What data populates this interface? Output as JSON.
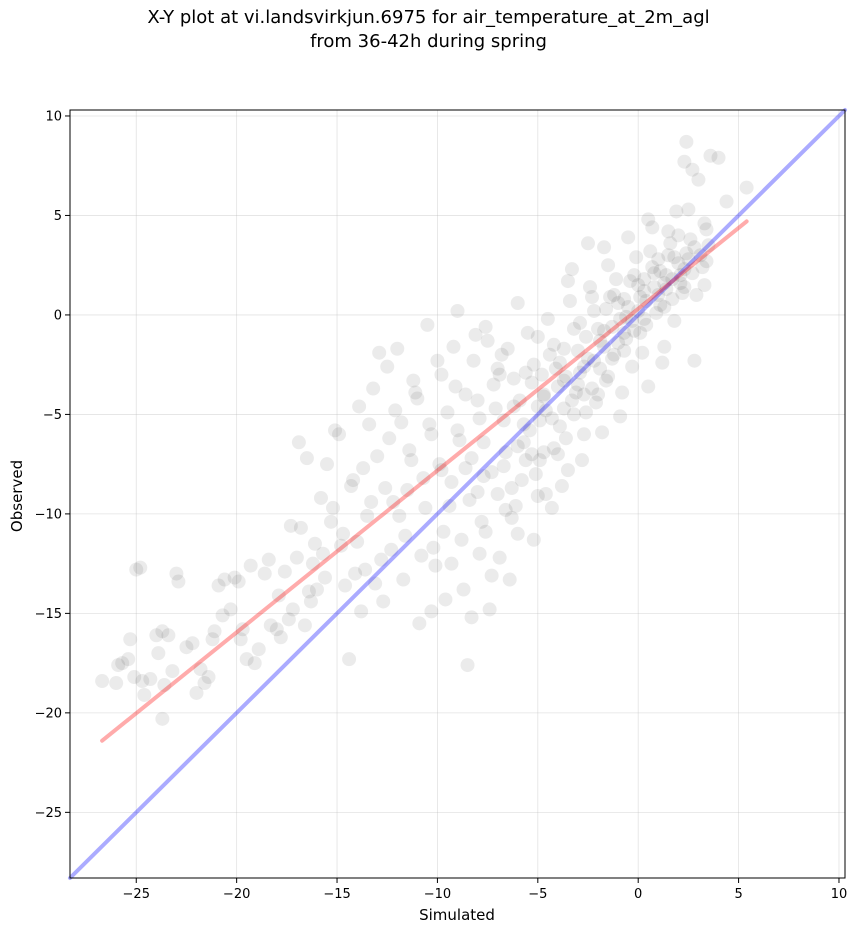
{
  "chart_data": {
    "type": "scatter",
    "title": "X-Y plot at vi.landsvirkjun.6975 for air_temperature_at_2m_agl",
    "subtitle": "from 36-42h during spring",
    "xlabel": "Simulated",
    "ylabel": "Observed",
    "xlim": [
      -28.3,
      10.3
    ],
    "ylim": [
      -28.3,
      10.3
    ],
    "xticks": [
      -25,
      -20,
      -15,
      -10,
      -5,
      0,
      5,
      10
    ],
    "yticks": [
      -25,
      -20,
      -15,
      -10,
      -5,
      0,
      5,
      10
    ],
    "xtick_labels": [
      "−25",
      "−20",
      "−15",
      "−10",
      "−5",
      "0",
      "5",
      "10"
    ],
    "ytick_labels": [
      "−25",
      "−20",
      "−15",
      "−10",
      "−5",
      "0",
      "5",
      "10"
    ],
    "grid": true,
    "point_color": "#000000",
    "point_alpha": 0.08,
    "regression_line": {
      "color": "#ff0000",
      "x": [
        -26.7,
        5.4
      ],
      "y": [
        -21.4,
        4.7
      ]
    },
    "identity_line": {
      "color": "#0000ff",
      "x": [
        -28.3,
        10.3
      ],
      "y": [
        -28.3,
        10.3
      ]
    },
    "points": [
      [
        -26.7,
        -18.4
      ],
      [
        -26.0,
        -18.5
      ],
      [
        -25.7,
        -17.5
      ],
      [
        -25.3,
        -16.3
      ],
      [
        -25.4,
        -17.3
      ],
      [
        -25.0,
        -12.8
      ],
      [
        -24.8,
        -12.7
      ],
      [
        -25.1,
        -18.2
      ],
      [
        -24.7,
        -18.4
      ],
      [
        -24.3,
        -18.3
      ],
      [
        -24.0,
        -16.1
      ],
      [
        -23.7,
        -15.9
      ],
      [
        -23.4,
        -16.1
      ],
      [
        -23.9,
        -17.0
      ],
      [
        -23.6,
        -18.6
      ],
      [
        -23.7,
        -20.3
      ],
      [
        -23.0,
        -13.0
      ],
      [
        -22.9,
        -13.4
      ],
      [
        -22.5,
        -16.7
      ],
      [
        -22.2,
        -16.5
      ],
      [
        -21.8,
        -17.8
      ],
      [
        -21.6,
        -18.5
      ],
      [
        -21.4,
        -18.2
      ],
      [
        -21.1,
        -15.9
      ],
      [
        -20.9,
        -13.6
      ],
      [
        -20.6,
        -13.3
      ],
      [
        -20.1,
        -13.2
      ],
      [
        -19.9,
        -13.4
      ],
      [
        -19.7,
        -15.8
      ],
      [
        -19.8,
        -16.3
      ],
      [
        -19.5,
        -17.3
      ],
      [
        -19.1,
        -17.5
      ],
      [
        -18.6,
        -13.0
      ],
      [
        -18.3,
        -15.6
      ],
      [
        -18.0,
        -15.8
      ],
      [
        -17.8,
        -16.2
      ],
      [
        -17.6,
        -12.9
      ],
      [
        -17.4,
        -15.3
      ],
      [
        -17.2,
        -14.8
      ],
      [
        -17.0,
        -12.2
      ],
      [
        -16.8,
        -10.7
      ],
      [
        -16.9,
        -6.4
      ],
      [
        -16.6,
        -15.6
      ],
      [
        -16.4,
        -13.9
      ],
      [
        -16.5,
        -7.2
      ],
      [
        -16.2,
        -12.5
      ],
      [
        -16.0,
        -13.8
      ],
      [
        -15.8,
        -9.2
      ],
      [
        -15.7,
        -12.0
      ],
      [
        -15.5,
        -7.5
      ],
      [
        -15.3,
        -10.4
      ],
      [
        -15.1,
        -5.8
      ],
      [
        -14.9,
        -6.0
      ],
      [
        -14.8,
        -11.6
      ],
      [
        -14.6,
        -13.6
      ],
      [
        -14.4,
        -17.3
      ],
      [
        -14.2,
        -8.3
      ],
      [
        -14.0,
        -11.4
      ],
      [
        -13.9,
        -4.6
      ],
      [
        -13.7,
        -7.7
      ],
      [
        -13.5,
        -10.1
      ],
      [
        -13.3,
        -9.4
      ],
      [
        -13.2,
        -3.7
      ],
      [
        -13.0,
        -7.1
      ],
      [
        -12.8,
        -12.3
      ],
      [
        -12.6,
        -8.7
      ],
      [
        -12.5,
        -2.6
      ],
      [
        -12.2,
        -9.4
      ],
      [
        -12.0,
        -1.7
      ],
      [
        -11.8,
        -5.4
      ],
      [
        -11.6,
        -11.1
      ],
      [
        -11.4,
        -6.8
      ],
      [
        -11.2,
        -3.3
      ],
      [
        -11.0,
        -4.2
      ],
      [
        -10.9,
        -15.5
      ],
      [
        -10.7,
        -8.2
      ],
      [
        -10.5,
        -0.5
      ],
      [
        -10.3,
        -6.0
      ],
      [
        -10.1,
        -12.6
      ],
      [
        -9.9,
        -7.5
      ],
      [
        -9.8,
        -3.0
      ],
      [
        -9.6,
        -14.3
      ],
      [
        -9.4,
        -9.6
      ],
      [
        -9.2,
        -1.6
      ],
      [
        -9.0,
        -5.8
      ],
      [
        -8.8,
        -11.3
      ],
      [
        -8.6,
        -4.0
      ],
      [
        -8.5,
        -17.6
      ],
      [
        -8.3,
        -7.2
      ],
      [
        -8.1,
        -1.0
      ],
      [
        -7.9,
        -12.0
      ],
      [
        -7.7,
        -6.4
      ],
      [
        -7.6,
        -0.6
      ],
      [
        -7.4,
        -14.8
      ],
      [
        -7.2,
        -3.5
      ],
      [
        -7.0,
        -9.0
      ],
      [
        -6.8,
        -2.0
      ],
      [
        -6.6,
        -6.9
      ],
      [
        -6.4,
        -13.3
      ],
      [
        -6.2,
        -4.6
      ],
      [
        -6.0,
        0.6
      ],
      [
        -5.8,
        -8.3
      ],
      [
        -5.6,
        -2.9
      ],
      [
        -5.4,
        -5.8
      ],
      [
        -5.2,
        -11.3
      ],
      [
        -5.0,
        -1.1
      ],
      [
        -4.9,
        -7.3
      ],
      [
        -4.7,
        -4.1
      ],
      [
        -4.5,
        -0.2
      ],
      [
        -4.3,
        -9.7
      ],
      [
        -4.1,
        -2.7
      ],
      [
        -3.9,
        -5.6
      ],
      [
        -3.7,
        -1.7
      ],
      [
        -3.5,
        -7.8
      ],
      [
        -3.3,
        2.3
      ],
      [
        -3.1,
        -3.9
      ],
      [
        -2.9,
        -0.4
      ],
      [
        -2.7,
        -6.0
      ],
      [
        -2.5,
        -2.2
      ],
      [
        -2.3,
        0.9
      ],
      [
        -2.1,
        -4.4
      ],
      [
        -1.9,
        -1.3
      ],
      [
        -1.7,
        3.4
      ],
      [
        -1.5,
        -3.1
      ],
      [
        -1.3,
        -0.6
      ],
      [
        -1.1,
        1.8
      ],
      [
        -0.9,
        -5.1
      ],
      [
        -0.7,
        -1.8
      ],
      [
        -0.5,
        0.4
      ],
      [
        -0.3,
        -2.6
      ],
      [
        -0.1,
        2.9
      ],
      [
        0.1,
        -0.9
      ],
      [
        0.3,
        1.2
      ],
      [
        0.5,
        -3.6
      ],
      [
        0.7,
        4.4
      ],
      [
        0.9,
        0.1
      ],
      [
        1.1,
        2.2
      ],
      [
        1.3,
        -1.6
      ],
      [
        1.5,
        3.0
      ],
      [
        1.7,
        0.8
      ],
      [
        1.9,
        5.2
      ],
      [
        2.1,
        1.6
      ],
      [
        2.3,
        7.7
      ],
      [
        2.4,
        8.7
      ],
      [
        2.6,
        3.8
      ],
      [
        2.8,
        -2.3
      ],
      [
        3.0,
        6.8
      ],
      [
        3.2,
        2.4
      ],
      [
        3.4,
        4.3
      ],
      [
        3.6,
        8.0
      ],
      [
        4.0,
        7.9
      ],
      [
        4.4,
        5.7
      ],
      [
        5.4,
        6.4
      ],
      [
        3.3,
        1.5
      ],
      [
        2.7,
        7.3
      ],
      [
        -12.4,
        -6.2
      ],
      [
        -11.5,
        -8.8
      ],
      [
        -10.6,
        -9.7
      ],
      [
        -9.5,
        -4.9
      ],
      [
        -8.4,
        -9.3
      ],
      [
        -7.3,
        -7.9
      ],
      [
        -6.3,
        -8.7
      ],
      [
        -5.3,
        -3.4
      ],
      [
        -4.2,
        -6.7
      ],
      [
        -3.2,
        -5.0
      ],
      [
        -2.2,
        -2.3
      ],
      [
        -1.2,
        -2.0
      ],
      [
        -0.2,
        -0.8
      ],
      [
        0.8,
        1.4
      ],
      [
        1.8,
        -0.3
      ],
      [
        -13.6,
        -12.8
      ],
      [
        -12.7,
        -14.4
      ],
      [
        -11.9,
        -10.1
      ],
      [
        -10.8,
        -12.1
      ],
      [
        -9.7,
        -10.9
      ],
      [
        -8.7,
        -13.8
      ],
      [
        -7.8,
        -10.4
      ],
      [
        -6.9,
        -12.2
      ],
      [
        -6.1,
        -9.6
      ],
      [
        -5.1,
        -8.0
      ],
      [
        -4.0,
        -7.0
      ],
      [
        -3.0,
        -3.5
      ],
      [
        -2.0,
        -4.0
      ],
      [
        -1.0,
        -1.4
      ],
      [
        0.0,
        0.2
      ],
      [
        1.0,
        1.0
      ],
      [
        2.0,
        2.6
      ],
      [
        -15.6,
        -13.2
      ],
      [
        -14.7,
        -11.0
      ],
      [
        -13.8,
        -14.9
      ],
      [
        -16.3,
        -14.4
      ],
      [
        -17.9,
        -14.1
      ],
      [
        -18.9,
        -16.8
      ],
      [
        -19.3,
        -12.6
      ],
      [
        -20.7,
        -15.1
      ],
      [
        -22.0,
        -19.0
      ],
      [
        -24.6,
        -19.1
      ],
      [
        -9.1,
        -3.6
      ],
      [
        -8.2,
        -2.3
      ],
      [
        -7.1,
        -4.7
      ],
      [
        -6.5,
        -1.7
      ],
      [
        -5.5,
        -0.9
      ],
      [
        -4.4,
        -2.0
      ],
      [
        -3.4,
        0.7
      ],
      [
        -2.4,
        1.4
      ],
      [
        -1.4,
        0.9
      ],
      [
        -0.4,
        1.7
      ],
      [
        0.6,
        3.2
      ],
      [
        1.6,
        3.6
      ],
      [
        2.5,
        2.8
      ],
      [
        3.5,
        3.5
      ],
      [
        -10.2,
        -11.7
      ],
      [
        -9.3,
        -8.4
      ],
      [
        -8.0,
        -8.9
      ],
      [
        -6.7,
        -5.3
      ],
      [
        -5.7,
        -6.4
      ],
      [
        -4.6,
        -4.8
      ],
      [
        -3.6,
        -3.1
      ],
      [
        -2.6,
        -1.1
      ],
      [
        -1.6,
        0.3
      ],
      [
        -0.6,
        -0.1
      ],
      [
        0.4,
        0.7
      ],
      [
        1.4,
        2.0
      ],
      [
        2.2,
        1.1
      ],
      [
        -11.1,
        -3.9
      ],
      [
        -12.9,
        -1.9
      ],
      [
        -13.4,
        -5.5
      ],
      [
        -14.3,
        -8.6
      ],
      [
        -15.2,
        -9.7
      ],
      [
        -16.1,
        -11.5
      ],
      [
        -17.3,
        -10.6
      ],
      [
        -18.4,
        -12.3
      ],
      [
        -7.5,
        -1.3
      ],
      [
        -6.0,
        -11.0
      ],
      [
        -5.0,
        -9.1
      ],
      [
        -4.8,
        -3.0
      ],
      [
        -3.8,
        -8.6
      ],
      [
        -2.8,
        -7.3
      ],
      [
        -1.8,
        -5.9
      ],
      [
        -0.8,
        -3.9
      ],
      [
        0.2,
        -1.9
      ],
      [
        1.2,
        -2.4
      ],
      [
        2.9,
        1.0
      ],
      [
        -3.5,
        1.7
      ],
      [
        -2.5,
        3.6
      ],
      [
        -1.5,
        2.5
      ],
      [
        -0.5,
        3.9
      ],
      [
        0.5,
        4.8
      ],
      [
        1.5,
        4.2
      ],
      [
        2.5,
        5.3
      ],
      [
        3.3,
        4.6
      ],
      [
        -8.9,
        -6.3
      ],
      [
        -7.9,
        -5.2
      ],
      [
        -6.9,
        -3.0
      ],
      [
        -5.9,
        -4.3
      ],
      [
        -4.9,
        -5.3
      ],
      [
        -3.9,
        -2.4
      ],
      [
        -2.9,
        -2.9
      ],
      [
        -1.9,
        -2.7
      ],
      [
        -0.9,
        -0.2
      ],
      [
        0.1,
        0.9
      ],
      [
        1.1,
        0.5
      ],
      [
        2.1,
        2.0
      ],
      [
        -11.3,
        -7.3
      ],
      [
        -10.4,
        -5.5
      ],
      [
        -9.8,
        -7.8
      ],
      [
        -8.6,
        -7.7
      ],
      [
        -7.6,
        -10.9
      ],
      [
        -6.6,
        -9.8
      ],
      [
        -5.6,
        -7.3
      ],
      [
        -4.6,
        -9.0
      ],
      [
        -3.6,
        -6.2
      ],
      [
        -2.6,
        -4.9
      ],
      [
        -1.6,
        -3.3
      ],
      [
        -0.6,
        -1.2
      ],
      [
        0.4,
        -0.5
      ],
      [
        1.4,
        1.3
      ],
      [
        2.4,
        3.1
      ],
      [
        3.1,
        3.0
      ],
      [
        -12.1,
        -4.8
      ],
      [
        -10.0,
        -2.3
      ],
      [
        -9.0,
        0.2
      ],
      [
        -8.0,
        -4.3
      ],
      [
        -7.0,
        -2.7
      ],
      [
        -6.0,
        -6.6
      ],
      [
        -5.0,
        -4.6
      ],
      [
        -4.0,
        -3.6
      ],
      [
        -3.0,
        -1.8
      ],
      [
        -2.0,
        -0.7
      ],
      [
        -1.0,
        0.6
      ],
      [
        0.0,
        1.5
      ],
      [
        1.0,
        2.8
      ],
      [
        2.0,
        4.0
      ],
      [
        -20.3,
        -14.8
      ],
      [
        -21.2,
        -16.3
      ],
      [
        -23.2,
        -17.9
      ],
      [
        -25.9,
        -17.6
      ],
      [
        -14.1,
        -13.0
      ],
      [
        -13.1,
        -13.5
      ],
      [
        -12.3,
        -11.8
      ],
      [
        -11.7,
        -13.3
      ],
      [
        -10.3,
        -14.9
      ],
      [
        -9.3,
        -12.5
      ],
      [
        -8.3,
        -15.2
      ],
      [
        -7.3,
        -13.1
      ],
      [
        -6.3,
        -10.2
      ],
      [
        -5.3,
        -7.0
      ],
      [
        -4.3,
        -5.2
      ],
      [
        -3.3,
        -4.3
      ],
      [
        -2.3,
        -3.7
      ],
      [
        -1.3,
        -2.2
      ],
      [
        -0.3,
        -0.3
      ],
      [
        0.7,
        2.4
      ],
      [
        1.7,
        1.8
      ],
      [
        2.7,
        2.1
      ],
      [
        -4.7,
        -6.9
      ],
      [
        -3.7,
        -4.7
      ],
      [
        -2.7,
        -4.0
      ],
      [
        -1.7,
        -1.6
      ],
      [
        -0.7,
        -0.9
      ],
      [
        0.3,
        -0.2
      ],
      [
        1.3,
        0.4
      ],
      [
        2.3,
        1.4
      ],
      [
        -6.2,
        -3.2
      ],
      [
        -5.2,
        -2.5
      ],
      [
        -4.2,
        -1.5
      ],
      [
        -3.2,
        -0.7
      ],
      [
        -2.2,
        0.2
      ],
      [
        -1.2,
        1.0
      ],
      [
        -0.2,
        2.0
      ],
      [
        0.8,
        2.1
      ],
      [
        1.8,
        2.9
      ],
      [
        2.8,
        3.4
      ],
      [
        3.4,
        2.7
      ],
      [
        -7.7,
        -8.1
      ],
      [
        -6.7,
        -7.6
      ],
      [
        -5.7,
        -5.5
      ],
      [
        -4.7,
        -4.0
      ],
      [
        -3.7,
        -3.3
      ],
      [
        -2.7,
        -2.6
      ],
      [
        -1.7,
        -0.8
      ],
      [
        -0.7,
        0.8
      ],
      [
        0.3,
        1.8
      ],
      [
        1.3,
        1.6
      ],
      [
        2.3,
        2.3
      ]
    ]
  }
}
